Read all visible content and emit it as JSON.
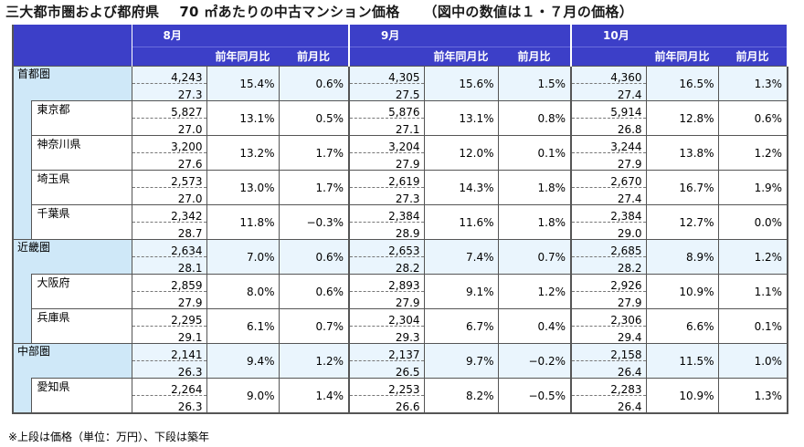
{
  "title": {
    "main": "三大都市圏および都府県",
    "area": "70 ㎡あたりの中古マンション価格",
    "note": "（図中の数値は１・７月の価格）"
  },
  "header": {
    "months": [
      "8月",
      "9月",
      "10月"
    ],
    "yoy_label": "前年同月比",
    "mom_label": "前月比"
  },
  "rows": [
    {
      "name": "首都圏",
      "kind": "region",
      "m": [
        {
          "price": "4,243",
          "age": "27.3",
          "yoy": "15.4%",
          "mom": "0.6%"
        },
        {
          "price": "4,305",
          "age": "27.5",
          "yoy": "15.6%",
          "mom": "1.5%"
        },
        {
          "price": "4,360",
          "age": "27.4",
          "yoy": "16.5%",
          "mom": "1.3%"
        }
      ]
    },
    {
      "name": "東京都",
      "kind": "pref",
      "m": [
        {
          "price": "5,827",
          "age": "27.0",
          "yoy": "13.1%",
          "mom": "0.5%"
        },
        {
          "price": "5,876",
          "age": "27.1",
          "yoy": "13.1%",
          "mom": "0.8%"
        },
        {
          "price": "5,914",
          "age": "26.8",
          "yoy": "12.8%",
          "mom": "0.6%"
        }
      ]
    },
    {
      "name": "神奈川県",
      "kind": "pref",
      "m": [
        {
          "price": "3,200",
          "age": "27.6",
          "yoy": "13.2%",
          "mom": "1.7%"
        },
        {
          "price": "3,204",
          "age": "27.9",
          "yoy": "12.0%",
          "mom": "0.1%"
        },
        {
          "price": "3,244",
          "age": "27.9",
          "yoy": "13.8%",
          "mom": "1.2%"
        }
      ]
    },
    {
      "name": "埼玉県",
      "kind": "pref",
      "m": [
        {
          "price": "2,573",
          "age": "27.0",
          "yoy": "13.0%",
          "mom": "1.7%"
        },
        {
          "price": "2,619",
          "age": "27.3",
          "yoy": "14.3%",
          "mom": "1.8%"
        },
        {
          "price": "2,670",
          "age": "27.4",
          "yoy": "16.7%",
          "mom": "1.9%"
        }
      ]
    },
    {
      "name": "千葉県",
      "kind": "pref",
      "m": [
        {
          "price": "2,342",
          "age": "28.7",
          "yoy": "11.8%",
          "mom": "−0.3%"
        },
        {
          "price": "2,384",
          "age": "28.9",
          "yoy": "11.6%",
          "mom": "1.8%"
        },
        {
          "price": "2,384",
          "age": "29.0",
          "yoy": "12.7%",
          "mom": "0.0%"
        }
      ]
    },
    {
      "name": "近畿圏",
      "kind": "region",
      "m": [
        {
          "price": "2,634",
          "age": "28.1",
          "yoy": "7.0%",
          "mom": "0.6%"
        },
        {
          "price": "2,653",
          "age": "28.2",
          "yoy": "7.4%",
          "mom": "0.7%"
        },
        {
          "price": "2,685",
          "age": "28.2",
          "yoy": "8.9%",
          "mom": "1.2%"
        }
      ]
    },
    {
      "name": "大阪府",
      "kind": "pref",
      "m": [
        {
          "price": "2,859",
          "age": "27.9",
          "yoy": "8.0%",
          "mom": "0.6%"
        },
        {
          "price": "2,893",
          "age": "27.9",
          "yoy": "9.1%",
          "mom": "1.2%"
        },
        {
          "price": "2,926",
          "age": "27.9",
          "yoy": "10.9%",
          "mom": "1.1%"
        }
      ]
    },
    {
      "name": "兵庫県",
      "kind": "pref",
      "m": [
        {
          "price": "2,295",
          "age": "29.1",
          "yoy": "6.1%",
          "mom": "0.7%"
        },
        {
          "price": "2,304",
          "age": "29.3",
          "yoy": "6.7%",
          "mom": "0.4%"
        },
        {
          "price": "2,306",
          "age": "29.4",
          "yoy": "6.6%",
          "mom": "0.1%"
        }
      ]
    },
    {
      "name": "中部圏",
      "kind": "region",
      "m": [
        {
          "price": "2,141",
          "age": "26.3",
          "yoy": "9.4%",
          "mom": "1.2%"
        },
        {
          "price": "2,137",
          "age": "26.5",
          "yoy": "9.7%",
          "mom": "−0.2%"
        },
        {
          "price": "2,158",
          "age": "26.4",
          "yoy": "11.5%",
          "mom": "1.0%"
        }
      ]
    },
    {
      "name": "愛知県",
      "kind": "pref",
      "m": [
        {
          "price": "2,264",
          "age": "26.3",
          "yoy": "9.0%",
          "mom": "1.4%"
        },
        {
          "price": "2,253",
          "age": "26.6",
          "yoy": "8.2%",
          "mom": "−0.5%"
        },
        {
          "price": "2,283",
          "age": "26.4",
          "yoy": "10.9%",
          "mom": "1.3%"
        }
      ]
    }
  ],
  "footnote": "※上段は価格（単位：万円）、下段は築年"
}
